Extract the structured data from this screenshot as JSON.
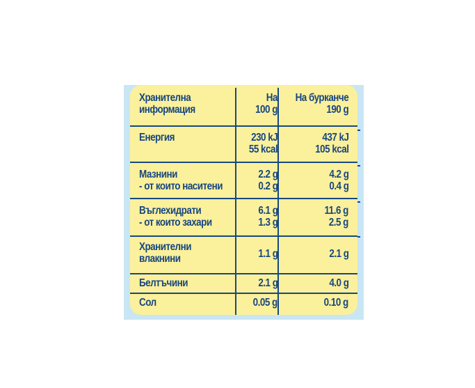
{
  "table": {
    "header": {
      "label": [
        "Хранителна",
        "информация"
      ],
      "per100": [
        "На",
        "100 g"
      ],
      "perJar": [
        "На бурканче",
        "190 g"
      ]
    },
    "rows": [
      {
        "label": [
          "Енергия"
        ],
        "per100": [
          "230 kJ",
          "55 kcal"
        ],
        "perJar": [
          "437 kJ",
          "105 kcal"
        ]
      },
      {
        "label": [
          "Мазнини",
          "- от които наситени"
        ],
        "per100": [
          "2.2 g",
          "0.2 g"
        ],
        "perJar": [
          "4.2 g",
          "0.4 g"
        ]
      },
      {
        "label": [
          "Въглехидрати",
          "- от които захари"
        ],
        "per100": [
          "6.1 g",
          "1.3 g"
        ],
        "perJar": [
          "11.6 g",
          "2.5 g"
        ]
      },
      {
        "label": [
          "Хранителни",
          "влакнини"
        ],
        "per100": [
          "1.1 g"
        ],
        "perJar": [
          "2.1 g"
        ]
      },
      {
        "label": [
          "Белтъчини"
        ],
        "per100": [
          "2.1 g"
        ],
        "perJar": [
          "4.0 g"
        ]
      },
      {
        "label": [
          "Сол"
        ],
        "per100": [
          "0.05 g"
        ],
        "perJar": [
          "0.10 g"
        ]
      }
    ]
  },
  "colors": {
    "panel": "#fbf09c",
    "text": "#17477f",
    "backdrop": "#c9e6f4"
  }
}
